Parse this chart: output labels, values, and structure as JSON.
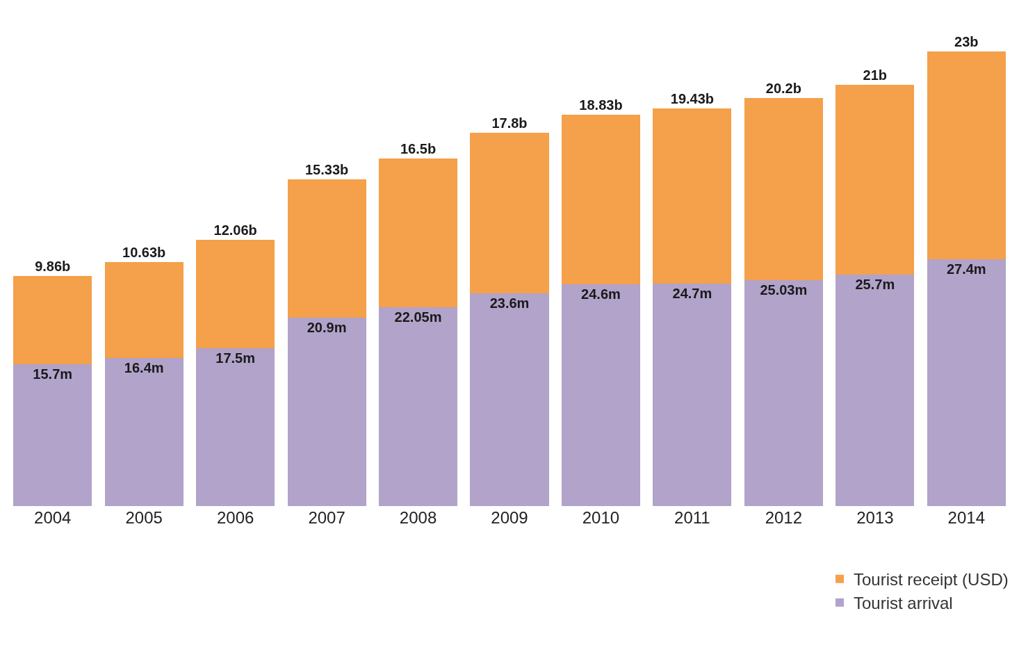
{
  "chart_data": {
    "type": "bar",
    "stacked": true,
    "categories": [
      "2004",
      "2005",
      "2006",
      "2007",
      "2008",
      "2009",
      "2010",
      "2011",
      "2012",
      "2013",
      "2014"
    ],
    "series": [
      {
        "name": "Tourist arrival",
        "color": "#b1a3c9",
        "values": [
          15.7,
          16.4,
          17.5,
          20.9,
          22.05,
          23.6,
          24.6,
          24.7,
          25.03,
          25.7,
          27.4
        ],
        "value_labels": [
          "15.7m",
          "16.4m",
          "17.5m",
          "20.9m",
          "22.05m",
          "23.6m",
          "24.6m",
          "24.7m",
          "25.03m",
          "25.7m",
          "27.4m"
        ]
      },
      {
        "name": "Tourist receipt (USD)",
        "color": "#f5a04a",
        "values": [
          9.86,
          10.63,
          12.06,
          15.33,
          16.5,
          17.8,
          18.83,
          19.43,
          20.2,
          21,
          23
        ],
        "value_labels": [
          "9.86b",
          "10.63b",
          "12.06b",
          "15.33b",
          "16.5b",
          "17.8b",
          "18.83b",
          "19.43b",
          "20.2b",
          "21b",
          "23b"
        ]
      }
    ],
    "tick_labels": "x",
    "legend": "bottom right"
  }
}
